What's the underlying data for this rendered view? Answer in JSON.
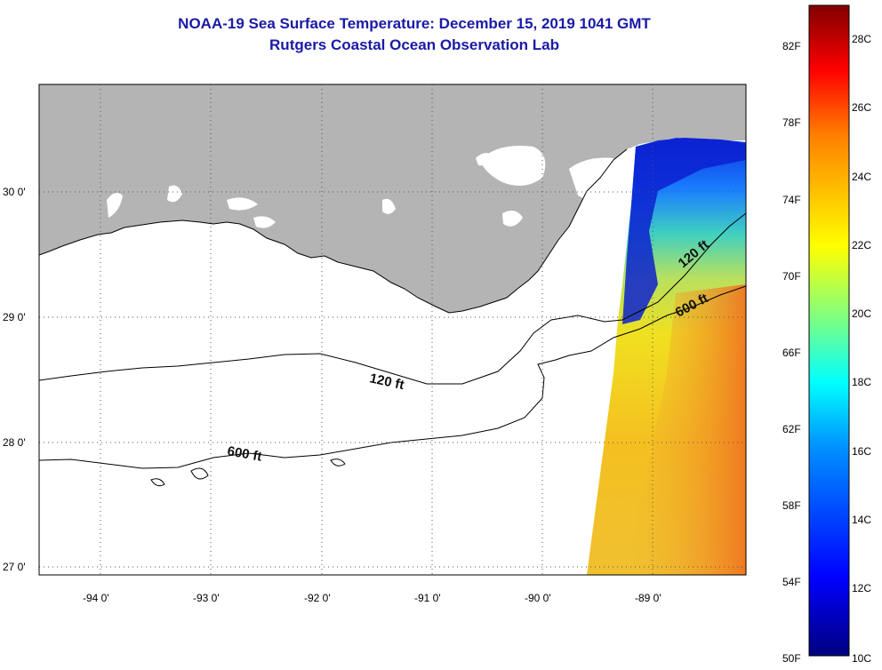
{
  "title": {
    "line1": "NOAA-19 Sea Surface Temperature:  December 15, 2019 1041 GMT",
    "line2": "Rutgers Coastal Ocean Observation Lab"
  },
  "map": {
    "lon_labels": [
      "-94 0'",
      "-93 0'",
      "-92 0'",
      "-91 0'",
      "-90 0'",
      "-89 0'"
    ],
    "lat_labels": [
      "30 0'",
      "29 0'",
      "28 0'",
      "27 0'"
    ],
    "contours": [
      {
        "label": "120 ft"
      },
      {
        "label": "600 ft"
      },
      {
        "label": "120 ft"
      },
      {
        "label": "600 ft"
      }
    ],
    "land_color": "#b4b4b4",
    "water_color": "#ffffff"
  },
  "colorbar": {
    "f_labels": [
      "82F",
      "78F",
      "74F",
      "70F",
      "66F",
      "62F",
      "58F",
      "54F",
      "50F"
    ],
    "c_labels": [
      "28C",
      "26C",
      "24C",
      "22C",
      "20C",
      "18C",
      "16C",
      "14C",
      "12C",
      "10C"
    ],
    "colors": [
      "#00008f",
      "#0000ff",
      "#0080ff",
      "#00ffff",
      "#80ff80",
      "#ffff00",
      "#ff8000",
      "#ff0000",
      "#800000"
    ]
  }
}
